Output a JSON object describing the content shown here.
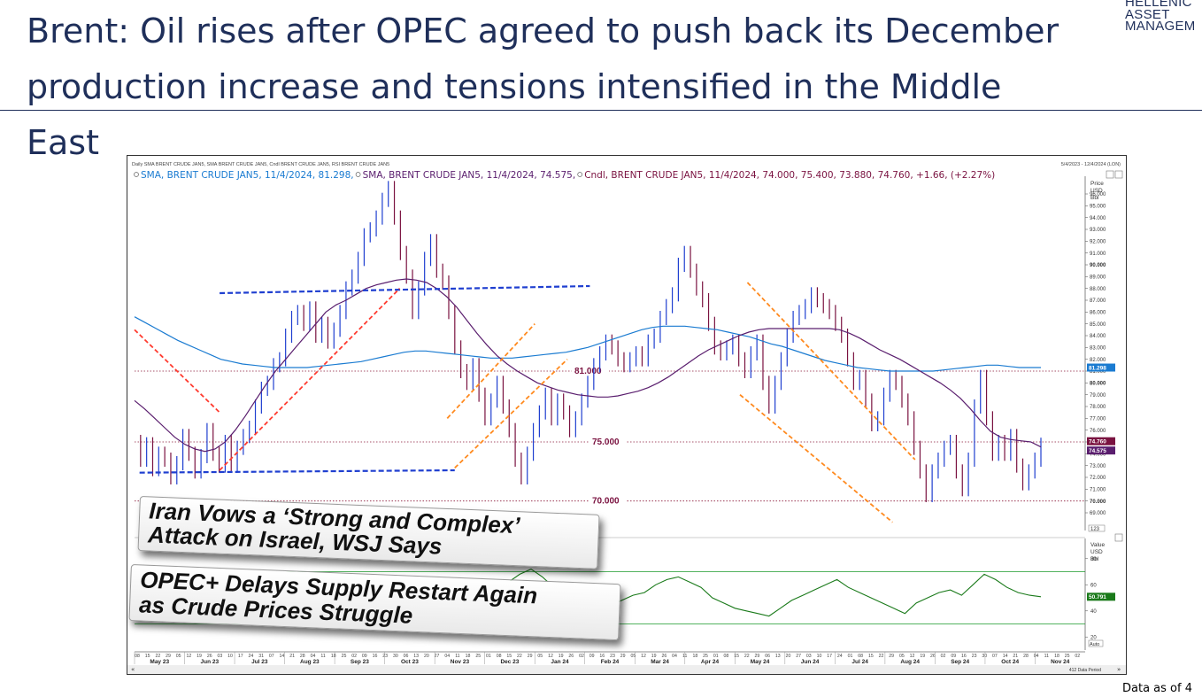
{
  "slide": {
    "title_line1": "Brent: Oil rises after OPEC agreed to push back its December",
    "title_line2": "production increase and tensions intensified in the Middle East",
    "logo_lines": [
      "HELLENIC",
      "ASSET",
      "MANAGEM"
    ],
    "footer": "Data as of 4"
  },
  "headlines": [
    {
      "line1": "Iran Vows a ‘Strong and Complex’",
      "line2": "Attack on Israel, WSJ Says"
    },
    {
      "line1": "OPEC+ Delays Supply Restart Again",
      "line2": "as Crude Prices Struggle"
    }
  ],
  "chart_data": {
    "type": "line",
    "top_caption": "Daily SMA BRENT CRUDE JAN5, SMA BRENT CRUDE JAN5, Cndl BRENT CRUDE JAN5, RSI BRENT CRUDE JAN5",
    "date_range": "5/4/2023 - 12/4/2024 (LON)",
    "legend": [
      {
        "text": "SMA, BRENT CRUDE JAN5, 11/4/2024, 81.298,",
        "color": "#1a7bd1"
      },
      {
        "text": "SMA, BRENT CRUDE JAN5, 11/4/2024, 74.575,",
        "color": "#5a1e6e"
      },
      {
        "text": "Cndl, BRENT CRUDE JAN5, 11/4/2024, 74.000, 75.400, 73.880, 74.760, +1.66, (+2.27%)",
        "color": "#7a1240"
      }
    ],
    "price_axis": {
      "title": [
        "Price",
        "USD",
        "Bbl"
      ],
      "ylim": [
        67.5,
        97.5
      ],
      "ticks": [
        69,
        70,
        71,
        72,
        73,
        74,
        75,
        76,
        77,
        78,
        79,
        80,
        81,
        82,
        83,
        84,
        85,
        86,
        87,
        88,
        89,
        90,
        91,
        92,
        93,
        94,
        95,
        96
      ],
      "tick_labels": [
        "69.000",
        "70.000",
        "71.000",
        "72.000",
        "73.000",
        "74.000",
        "75.000",
        "76.000",
        "77.000",
        "78.000",
        "79.000",
        "80.000",
        "81.000",
        "82.000",
        "83.000",
        "84.000",
        "85.000",
        "86.000",
        "87.000",
        "88.000",
        "89.000",
        "90.000",
        "91.000",
        "92.000",
        "93.000",
        "94.000",
        "95.000",
        "96.000"
      ],
      "bold_labels": [
        "70.000",
        "75.000",
        "80.000",
        "90.000"
      ],
      "last_price_tags": [
        {
          "text": "81.298",
          "color": "#1a7bd1"
        },
        {
          "text": "74.760",
          "color": "#7a1240"
        },
        {
          "text": "74.575",
          "color": "#5a1e6e"
        }
      ],
      "auto_label": "123"
    },
    "horizontal_levels": [
      {
        "value": 81,
        "label": "81.000"
      },
      {
        "value": 75,
        "label": "75.000"
      },
      {
        "value": 70,
        "label": "70.000"
      }
    ],
    "months": [
      "May 23",
      "Jun 23",
      "Jul 23",
      "Aug 23",
      "Sep 23",
      "Oct 23",
      "Nov 23",
      "Dec 23",
      "Jan 24",
      "Feb 24",
      "Mar 24",
      "Apr 24",
      "May 24",
      "Jun 24",
      "Jul 24",
      "Aug 24",
      "Sep 24",
      "Oct 24",
      "Nov 24"
    ],
    "day_ticks": "08 15 22 29 05 12 19 26 03 10 17 24 31 07 14 21 28 04 11 18 25 02 09 16 23 30 06 13 20 27 04 11 18 25 01 08 15 22 29 05 12 19 26 02 09 16 23 29 05 12 19 26 04 11 18 25 01 08 15 22 29 06 13 20 27 03 10 17 24 01 08 15 22 29 05 12 19 26 02 09 16 23 30 07 14 21 28 04 11 18 25 02",
    "x_months": 19,
    "close": [
      75.0,
      73.5,
      74.8,
      72.7,
      74.0,
      73.5,
      72.0,
      73.2,
      75.5,
      74.0,
      72.5,
      73.8,
      76.0,
      74.0,
      73.0,
      75.0,
      73.0,
      74.5,
      75.5,
      76.2,
      78.0,
      79.5,
      80.0,
      81.5,
      82.0,
      84.0,
      85.5,
      86.0,
      85.0,
      86.3,
      84.0,
      85.0,
      83.5,
      84.5,
      86.0,
      88.0,
      89.0,
      90.5,
      92.5,
      93.0,
      94.0,
      95.5,
      96.5,
      94.0,
      91.0,
      89.0,
      86.0,
      88.0,
      90.5,
      92.0,
      89.5,
      88.5,
      86.0,
      83.0,
      81.0,
      80.0,
      81.5,
      79.0,
      77.0,
      78.5,
      80.0,
      78.0,
      76.0,
      73.5,
      72.0,
      74.0,
      76.0,
      77.5,
      79.0,
      77.0,
      78.5,
      77.5,
      76.0,
      77.0,
      78.5,
      80.0,
      81.5,
      82.5,
      83.5,
      83.0,
      82.0,
      81.5,
      82.0,
      82.5,
      82.0,
      83.5,
      84.0,
      85.5,
      86.5,
      87.5,
      90.0,
      91.0,
      89.5,
      88.0,
      87.0,
      85.0,
      83.0,
      82.5,
      83.0,
      83.5,
      82.0,
      81.0,
      82.5,
      83.5,
      80.0,
      78.0,
      80.0,
      82.0,
      84.0,
      85.5,
      86.0,
      86.5,
      87.5,
      87.0,
      86.5,
      86.0,
      85.0,
      84.0,
      82.0,
      80.0,
      80.5,
      78.5,
      76.5,
      77.0,
      79.0,
      80.5,
      80.0,
      78.5,
      77.0,
      74.5,
      72.5,
      70.5,
      72.5,
      73.5,
      74.5,
      75.0,
      72.5,
      71.0,
      73.5,
      78.0,
      80.5,
      77.0,
      74.0,
      75.0,
      74.0,
      75.5,
      73.0,
      71.5,
      72.5,
      73.5,
      74.76
    ],
    "sma_slow": [
      85.6,
      85.1,
      84.6,
      84.1,
      83.6,
      83.2,
      82.8,
      82.4,
      82.0,
      81.8,
      81.6,
      81.5,
      81.4,
      81.3,
      81.3,
      81.3,
      81.3,
      81.4,
      81.5,
      81.6,
      81.7,
      81.8,
      82.0,
      82.2,
      82.4,
      82.6,
      82.7,
      82.7,
      82.6,
      82.5,
      82.4,
      82.3,
      82.2,
      82.1,
      82.1,
      82.1,
      82.2,
      82.3,
      82.4,
      82.5,
      82.6,
      82.8,
      83.0,
      83.3,
      83.6,
      83.9,
      84.2,
      84.5,
      84.7,
      84.8,
      84.8,
      84.8,
      84.7,
      84.6,
      84.5,
      84.3,
      84.1,
      83.9,
      83.6,
      83.3,
      83.1,
      82.8,
      82.5,
      82.2,
      81.9,
      81.7,
      81.5,
      81.3,
      81.2,
      81.1,
      81.0,
      81.0,
      81.0,
      81.0,
      81.0,
      81.1,
      81.2,
      81.3,
      81.4,
      81.5,
      81.5,
      81.4,
      81.3,
      81.3,
      81.298
    ],
    "sma_fast": [
      78.5,
      77.8,
      77.0,
      76.2,
      75.4,
      74.8,
      74.4,
      74.2,
      74.4,
      75.0,
      76.0,
      77.2,
      78.5,
      79.8,
      81.0,
      82.0,
      83.0,
      84.0,
      85.0,
      86.0,
      86.6,
      87.0,
      87.5,
      88.0,
      88.3,
      88.5,
      88.7,
      88.8,
      88.7,
      88.5,
      88.0,
      87.3,
      86.4,
      85.3,
      84.2,
      83.2,
      82.3,
      81.6,
      81.0,
      80.5,
      80.0,
      79.7,
      79.4,
      79.2,
      79.0,
      78.9,
      78.8,
      78.8,
      78.9,
      79.1,
      79.3,
      79.6,
      80.0,
      80.5,
      81.1,
      81.7,
      82.3,
      82.8,
      83.2,
      83.6,
      84.0,
      84.3,
      84.5,
      84.6,
      84.6,
      84.6,
      84.6,
      84.6,
      84.6,
      84.6,
      84.5,
      84.2,
      83.8,
      83.3,
      82.8,
      82.4,
      82.0,
      81.5,
      81.0,
      80.5,
      80.0,
      79.4,
      78.7,
      77.8,
      76.8,
      75.9,
      75.4,
      75.2,
      75.1,
      75.0,
      74.575
    ],
    "trendlines": [
      {
        "style": "dashed",
        "color": "#1f3fd0",
        "from": [
          0.2,
          72.4
        ],
        "to": [
          12.8,
          72.6
        ]
      },
      {
        "style": "dashed",
        "color": "#1f3fd0",
        "from": [
          3.4,
          87.6
        ],
        "to": [
          18.2,
          88.2
        ]
      },
      {
        "style": "dashed",
        "color": "#ff3b2f",
        "from": [
          0.0,
          84.5
        ],
        "to": [
          3.4,
          77.5
        ]
      },
      {
        "style": "dashed",
        "color": "#ff3b2f",
        "from": [
          3.4,
          72.6
        ],
        "to": [
          10.6,
          88.0
        ]
      },
      {
        "style": "dashed",
        "color": "#ff8a1f",
        "from": [
          12.8,
          72.8
        ],
        "to": [
          17.3,
          82.0
        ]
      },
      {
        "style": "dashed",
        "color": "#ff8a1f",
        "from": [
          12.5,
          77.0
        ],
        "to": [
          16.0,
          85.0
        ]
      },
      {
        "style": "dashed",
        "color": "#ff8a1f",
        "from": [
          24.5,
          88.5
        ],
        "to": [
          31.2,
          73.5
        ]
      },
      {
        "style": "dashed",
        "color": "#ff8a1f",
        "from": [
          24.2,
          79.0
        ],
        "to": [
          30.3,
          68.2
        ]
      }
    ],
    "rsi": {
      "axis_title": [
        "Value",
        "USD",
        "Bbl"
      ],
      "ylim": [
        10,
        90
      ],
      "ticks": [
        20,
        40,
        60,
        80
      ],
      "tick_labels": [
        "20",
        "40",
        "60",
        "80"
      ],
      "upper": 70,
      "lower": 30,
      "last_value": "50.791",
      "auto_label": "Auto",
      "values": [
        55,
        62,
        58,
        66,
        60,
        64,
        70,
        62,
        58,
        54,
        50,
        46,
        44,
        50,
        56,
        60,
        54,
        48,
        44,
        40,
        36,
        34,
        38,
        44,
        40,
        36,
        34,
        38,
        32,
        40,
        46,
        52,
        58,
        62,
        68,
        72,
        66,
        58,
        56,
        52,
        46,
        42,
        44,
        48,
        52,
        54,
        60,
        64,
        66,
        62,
        58,
        50,
        46,
        42,
        40,
        38,
        36,
        42,
        48,
        52,
        56,
        60,
        64,
        58,
        54,
        50,
        46,
        42,
        38,
        46,
        50,
        54,
        56,
        52,
        60,
        68,
        64,
        58,
        54,
        52,
        50.791
      ]
    },
    "nav": {
      "bars_info": "412 Data Period"
    }
  }
}
